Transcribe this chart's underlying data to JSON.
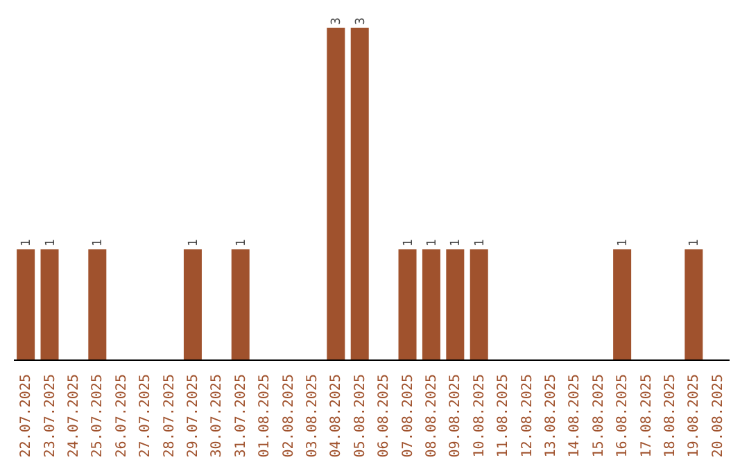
{
  "chart_data": {
    "type": "bar",
    "categories": [
      "22.07.2025",
      "23.07.2025",
      "24.07.2025",
      "25.07.2025",
      "26.07.2025",
      "27.07.2025",
      "28.07.2025",
      "29.07.2025",
      "30.07.2025",
      "31.07.2025",
      "01.08.2025",
      "02.08.2025",
      "03.08.2025",
      "04.08.2025",
      "05.08.2025",
      "06.08.2025",
      "07.08.2025",
      "08.08.2025",
      "09.08.2025",
      "10.08.2025",
      "11.08.2025",
      "12.08.2025",
      "13.08.2025",
      "14.08.2025",
      "15.08.2025",
      "16.08.2025",
      "17.08.2025",
      "18.08.2025",
      "19.08.2025",
      "20.08.2025"
    ],
    "values": [
      1,
      1,
      0,
      1,
      0,
      0,
      0,
      1,
      0,
      1,
      0,
      0,
      0,
      3,
      3,
      0,
      1,
      1,
      1,
      1,
      0,
      0,
      0,
      0,
      0,
      1,
      0,
      0,
      1,
      0
    ],
    "value_labels": [
      "1",
      "1",
      null,
      "1",
      null,
      null,
      null,
      "1",
      null,
      "1",
      null,
      null,
      null,
      "3",
      "3",
      null,
      "1",
      "1",
      "1",
      "1",
      null,
      null,
      null,
      null,
      null,
      "1",
      null,
      null,
      "1",
      null
    ],
    "color": "#a0522d",
    "ylim": [
      0,
      3
    ]
  }
}
